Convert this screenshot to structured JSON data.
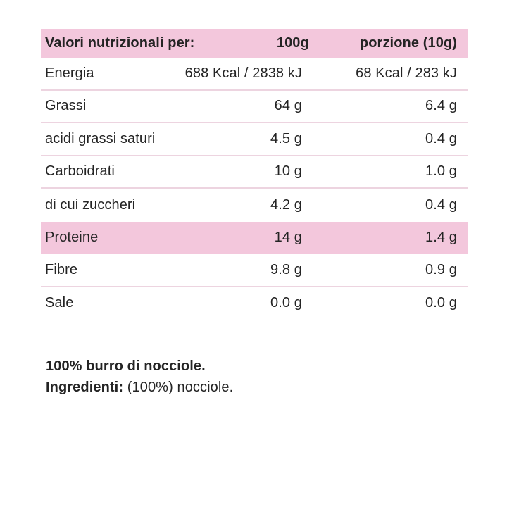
{
  "table": {
    "header": {
      "label": "Valori nutrizionali per:",
      "col_100g": "100g",
      "col_portion": "porzione (10g)"
    },
    "rows": [
      {
        "label": "Energia",
        "per_100g": "688 Kcal / 2838 kJ",
        "per_portion": "68 Kcal / 283 kJ",
        "highlight": false
      },
      {
        "label": "Grassi",
        "per_100g": "64 g",
        "per_portion": "6.4 g",
        "highlight": false
      },
      {
        "label": "acidi grassi saturi",
        "per_100g": "4.5 g",
        "per_portion": "0.4 g",
        "highlight": false
      },
      {
        "label": "Carboidrati",
        "per_100g": "10 g",
        "per_portion": "1.0 g",
        "highlight": false
      },
      {
        "label": "di cui zuccheri",
        "per_100g": "4.2 g",
        "per_portion": "0.4 g",
        "highlight": false
      },
      {
        "label": "Proteine",
        "per_100g": "14 g",
        "per_portion": "1.4 g",
        "highlight": true
      },
      {
        "label": "Fibre",
        "per_100g": "9.8 g",
        "per_portion": "0.9 g",
        "highlight": false
      },
      {
        "label": "Sale",
        "per_100g": "0.0 g",
        "per_portion": "0.0 g",
        "highlight": false
      }
    ]
  },
  "footer": {
    "line1": "100% burro di nocciole.",
    "line2_bold": "Ingredienti:",
    "line2_rest": " (100%) nocciole."
  },
  "colors": {
    "highlight_pink": "#F3C7DC",
    "divider_pink": "#EDD4E0",
    "text": "#242424",
    "background": "#FFFFFF"
  }
}
